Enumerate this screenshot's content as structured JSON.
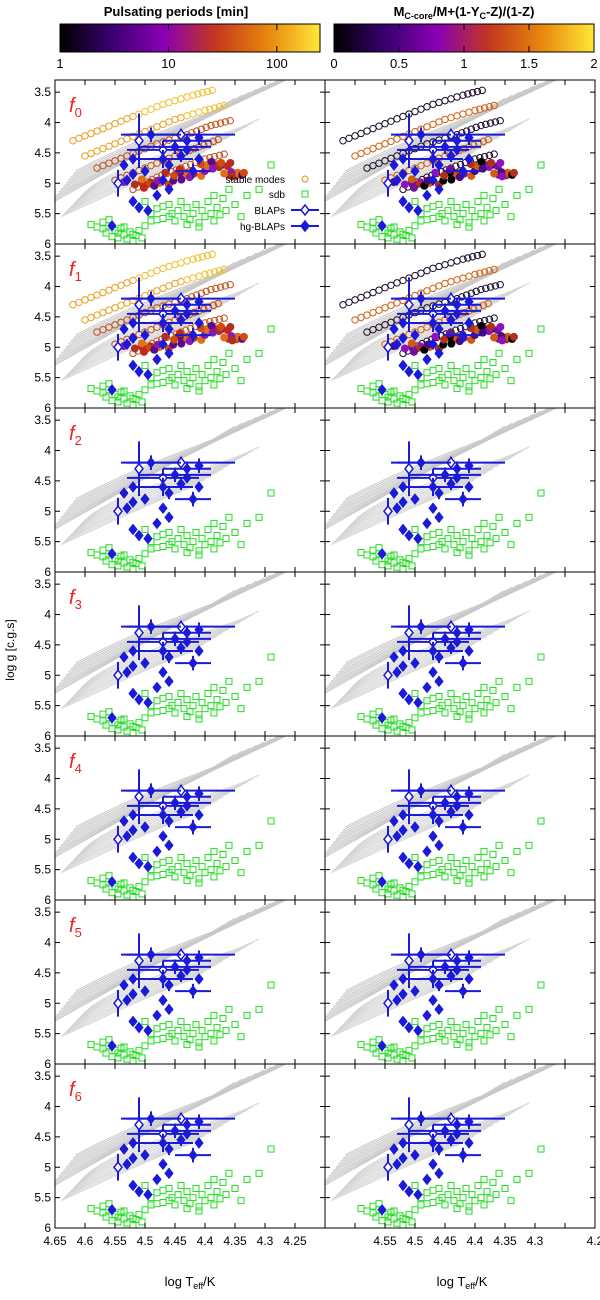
{
  "colorbars": [
    {
      "title": "Pulsating periods [min]",
      "scale": "log",
      "range": [
        1,
        250
      ],
      "ticks": [
        "1",
        "10",
        "100"
      ],
      "tick_values": [
        1,
        10,
        100
      ],
      "palette": [
        "#000000",
        "#3a0070",
        "#8a00b4",
        "#c4381e",
        "#e8860e",
        "#ffe838"
      ]
    },
    {
      "title": "M",
      "title_sub1": "C-core",
      "title_mid": "/M+(1-Y",
      "title_sub2": "C",
      "title_end": "-Z)/(1-Z)",
      "scale": "linear",
      "range": [
        0,
        2
      ],
      "ticks": [
        "0",
        "0.5",
        "1",
        "1.5",
        "2"
      ],
      "tick_values": [
        0,
        0.5,
        1,
        1.5,
        2
      ],
      "palette": [
        "#000000",
        "#3a0070",
        "#8a00b4",
        "#c4381e",
        "#e8860e",
        "#ffe838"
      ]
    }
  ],
  "panel_labels": [
    {
      "main": "f",
      "sub": "0"
    },
    {
      "main": "f",
      "sub": "1"
    },
    {
      "main": "f",
      "sub": "2"
    },
    {
      "main": "f",
      "sub": "3"
    },
    {
      "main": "f",
      "sub": "4"
    },
    {
      "main": "f",
      "sub": "5"
    },
    {
      "main": "f",
      "sub": "6"
    }
  ],
  "axes": {
    "xlabel_main": "log T",
    "xlabel_sub": "eff",
    "xlabel_end": "/K",
    "ylabel": "log g [c.g.s]",
    "x_ticks_left": [
      "4.65",
      "4.6",
      "4.55",
      "4.5",
      "4.45",
      "4.4",
      "4.35",
      "4.3",
      "4.25"
    ],
    "x_ticks_right": [
      "4.55",
      "4.5",
      "4.45",
      "4.4",
      "4.35",
      "4.3",
      "4.2"
    ],
    "x_tick_values_left": [
      4.65,
      4.6,
      4.55,
      4.5,
      4.45,
      4.4,
      4.35,
      4.3,
      4.25
    ],
    "x_tick_values_right": [
      4.55,
      4.5,
      4.45,
      4.4,
      4.35,
      4.3,
      4.2
    ],
    "y_ticks": [
      "3.5",
      "4",
      "4.5",
      "5",
      "5.5",
      "6"
    ],
    "y_tick_values": [
      3.5,
      4,
      4.5,
      5,
      5.5,
      6
    ]
  },
  "legend": [
    {
      "label": "stable modes",
      "symbol": "open-circle",
      "color": "#e08a1e"
    },
    {
      "label": "sdb",
      "symbol": "open-square",
      "color": "#22dd22"
    },
    {
      "label": "BLAPs",
      "symbol": "open-diamond-errorbar",
      "color": "#1a1ad8"
    },
    {
      "label": "hg-BLAPs",
      "symbol": "filled-diamond-errorbar",
      "color": "#1a1ad8"
    }
  ],
  "chart_data": {
    "type": "scatter",
    "layout": "7 rows (f0-f6) x 2 columns: left colored by pulsating period, right by core composition",
    "xlabel": "log Teff/K",
    "ylabel": "log g [c.g.s]",
    "xlim": [
      4.65,
      4.2
    ],
    "ylim": [
      6.0,
      3.3
    ],
    "series": [
      {
        "name": "sdb",
        "symbol": "open-square",
        "color": "#22dd22",
        "points": [
          [
            4.59,
            5.68
          ],
          [
            4.58,
            5.72
          ],
          [
            4.57,
            5.75
          ],
          [
            4.565,
            5.82
          ],
          [
            4.56,
            5.7
          ],
          [
            4.555,
            5.88
          ],
          [
            4.55,
            5.78
          ],
          [
            4.545,
            5.9
          ],
          [
            4.54,
            5.74
          ],
          [
            4.535,
            5.85
          ],
          [
            4.53,
            5.92
          ],
          [
            4.525,
            5.8
          ],
          [
            4.52,
            5.95
          ],
          [
            4.515,
            5.86
          ],
          [
            4.51,
            5.78
          ],
          [
            4.505,
            5.9
          ],
          [
            4.57,
            5.64
          ],
          [
            4.56,
            5.6
          ],
          [
            4.545,
            5.82
          ],
          [
            4.535,
            5.72
          ],
          [
            4.52,
            5.84
          ],
          [
            4.5,
            5.7
          ],
          [
            4.49,
            5.5
          ],
          [
            4.48,
            5.42
          ],
          [
            4.47,
            5.58
          ],
          [
            4.46,
            5.35
          ],
          [
            4.455,
            5.5
          ],
          [
            4.45,
            5.62
          ],
          [
            4.445,
            5.45
          ],
          [
            4.44,
            5.3
          ],
          [
            4.435,
            5.55
          ],
          [
            4.43,
            5.4
          ],
          [
            4.425,
            5.6
          ],
          [
            4.42,
            5.5
          ],
          [
            4.415,
            5.35
          ],
          [
            4.41,
            5.65
          ],
          [
            4.405,
            5.45
          ],
          [
            4.4,
            5.55
          ],
          [
            4.395,
            5.3
          ],
          [
            4.39,
            5.5
          ],
          [
            4.385,
            5.62
          ],
          [
            4.38,
            5.4
          ],
          [
            4.375,
            5.52
          ],
          [
            4.37,
            5.25
          ],
          [
            4.365,
            5.45
          ],
          [
            4.36,
            5.1
          ],
          [
            4.35,
            5.35
          ],
          [
            4.34,
            5.55
          ],
          [
            4.33,
            5.2
          ],
          [
            4.31,
            5.1
          ],
          [
            4.29,
            4.7
          ],
          [
            4.47,
            5.38
          ],
          [
            4.46,
            5.55
          ],
          [
            4.48,
            5.6
          ],
          [
            4.43,
            5.68
          ],
          [
            4.41,
            5.72
          ],
          [
            4.385,
            5.2
          ],
          [
            4.5,
            5.3
          ],
          [
            4.49,
            5.62
          ]
        ]
      },
      {
        "name": "BLAPs",
        "symbol": "open-diamond-errorbar",
        "color": "#1a1ad8",
        "points": [
          {
            "x": 4.545,
            "y": 5.0,
            "dx": 0.0,
            "dy": 0.22
          },
          {
            "x": 4.51,
            "y": 4.3,
            "dx": 0.0,
            "dy": 0.45
          },
          {
            "x": 4.47,
            "y": 4.45,
            "dx": 0.06,
            "dy": 0.15
          },
          {
            "x": 4.44,
            "y": 4.2,
            "dx": 0.09,
            "dy": 0.1
          }
        ]
      },
      {
        "name": "hg-BLAPs",
        "symbol": "filled-diamond-errorbar",
        "color": "#1a1ad8",
        "points": [
          {
            "x": 4.49,
            "y": 4.2,
            "dx": 0.05,
            "dy": 0.12
          },
          {
            "x": 4.47,
            "y": 4.6,
            "dx": 0.05,
            "dy": 0.15
          },
          {
            "x": 4.46,
            "y": 4.7,
            "dx": 0.0,
            "dy": 0.1
          },
          {
            "x": 4.45,
            "y": 4.4,
            "dx": 0.06,
            "dy": 0.12
          },
          {
            "x": 4.44,
            "y": 4.55,
            "dx": 0.0,
            "dy": 0.1
          },
          {
            "x": 4.43,
            "y": 4.3,
            "dx": 0.04,
            "dy": 0.12
          },
          {
            "x": 4.42,
            "y": 4.8,
            "dx": 0.03,
            "dy": 0.12
          },
          {
            "x": 4.41,
            "y": 4.25,
            "dx": 0.0,
            "dy": 0.12
          },
          {
            "x": 4.52,
            "y": 4.6,
            "dx": 0.0,
            "dy": 0.0
          },
          {
            "x": 4.5,
            "y": 4.8,
            "dx": 0.0,
            "dy": 0.0
          },
          {
            "x": 4.52,
            "y": 4.85,
            "dx": 0.0,
            "dy": 0.0
          },
          {
            "x": 4.535,
            "y": 4.7,
            "dx": 0.0,
            "dy": 0.0
          },
          {
            "x": 4.53,
            "y": 4.95,
            "dx": 0.0,
            "dy": 0.0
          },
          {
            "x": 4.43,
            "y": 4.45,
            "dx": 0.0,
            "dy": 0.0
          },
          {
            "x": 4.41,
            "y": 4.6,
            "dx": 0.0,
            "dy": 0.0
          },
          {
            "x": 4.52,
            "y": 5.3,
            "dx": 0.0,
            "dy": 0.0
          },
          {
            "x": 4.51,
            "y": 5.4,
            "dx": 0.0,
            "dy": 0.0
          },
          {
            "x": 4.495,
            "y": 5.45,
            "dx": 0.0,
            "dy": 0.0
          },
          {
            "x": 4.47,
            "y": 4.95,
            "dx": 0.0,
            "dy": 0.0
          },
          {
            "x": 4.46,
            "y": 5.1,
            "dx": 0.0,
            "dy": 0.0
          },
          {
            "x": 4.48,
            "y": 5.2,
            "dx": 0.0,
            "dy": 0.0
          },
          {
            "x": 4.555,
            "y": 5.7,
            "dx": 0.0,
            "dy": 0.0
          }
        ]
      },
      {
        "name": "stable modes",
        "symbol": "open-circle",
        "color": "#e08a1e",
        "panels": [
          "f0",
          "f1"
        ],
        "tracks": [
          [
            [
              4.62,
              4.3
            ],
            [
              4.57,
              4.1
            ],
            [
              4.52,
              3.9
            ],
            [
              4.47,
              3.7
            ],
            [
              4.42,
              3.55
            ],
            [
              4.38,
              3.45
            ]
          ],
          [
            [
              4.6,
              4.55
            ],
            [
              4.55,
              4.35
            ],
            [
              4.5,
              4.15
            ],
            [
              4.45,
              3.95
            ],
            [
              4.4,
              3.8
            ],
            [
              4.36,
              3.7
            ]
          ],
          [
            [
              4.58,
              4.75
            ],
            [
              4.53,
              4.55
            ],
            [
              4.48,
              4.35
            ],
            [
              4.43,
              4.2
            ],
            [
              4.39,
              4.05
            ],
            [
              4.35,
              3.95
            ]
          ],
          [
            [
              4.55,
              4.95
            ],
            [
              4.5,
              4.75
            ],
            [
              4.45,
              4.55
            ],
            [
              4.41,
              4.4
            ],
            [
              4.37,
              4.25
            ]
          ],
          [
            [
              4.52,
              5.1
            ],
            [
              4.48,
              4.9
            ],
            [
              4.44,
              4.75
            ],
            [
              4.4,
              4.6
            ],
            [
              4.36,
              4.5
            ]
          ]
        ]
      },
      {
        "name": "unstable modes",
        "symbol": "filled-circle",
        "color_scale": "period / core composition",
        "panels": [
          "f0",
          "f1"
        ],
        "clumps": [
          {
            "x": 4.49,
            "y": 5.0,
            "rx": 0.05,
            "ry": 0.1
          },
          {
            "x": 4.43,
            "y": 4.85,
            "rx": 0.04,
            "ry": 0.12
          },
          {
            "x": 4.38,
            "y": 4.7,
            "rx": 0.03,
            "ry": 0.08
          },
          {
            "x": 4.35,
            "y": 4.85,
            "rx": 0.02,
            "ry": 0.05
          }
        ]
      }
    ]
  }
}
